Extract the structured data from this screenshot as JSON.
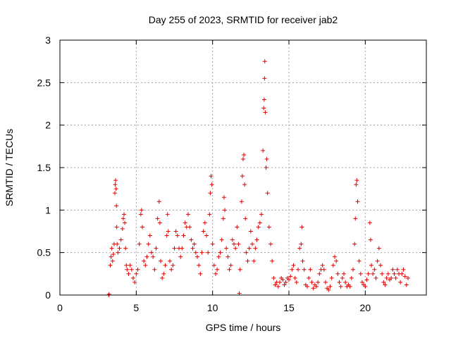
{
  "chart_data": {
    "type": "scatter",
    "title": "Day 255 of 2023, SRMTID for receiver jab2",
    "xlabel": "GPS time / hours",
    "ylabel": "SRMTID / TECUs",
    "xlim": [
      0,
      24
    ],
    "ylim": [
      0,
      3
    ],
    "xticks": [
      0,
      5,
      10,
      15,
      20
    ],
    "yticks": [
      0,
      0.5,
      1,
      1.5,
      2,
      2.5,
      3
    ],
    "xtick_labels": [
      "0",
      "5",
      "10",
      "15",
      "20"
    ],
    "ytick_labels": [
      "0",
      "0.5",
      "1",
      "1.5",
      "2",
      "2.5",
      "3"
    ],
    "grid": true,
    "marker": "plus",
    "color": "#e00000",
    "series": [
      {
        "name": "jab2",
        "points": [
          [
            3.2,
            0.0
          ],
          [
            3.22,
            0.01
          ],
          [
            3.3,
            0.35
          ],
          [
            3.35,
            0.45
          ],
          [
            3.4,
            0.55
          ],
          [
            3.45,
            0.4
          ],
          [
            3.5,
            0.48
          ],
          [
            3.55,
            0.6
          ],
          [
            3.6,
            1.2
          ],
          [
            3.62,
            1.3
          ],
          [
            3.65,
            1.35
          ],
          [
            3.68,
            1.25
          ],
          [
            3.7,
            1.05
          ],
          [
            3.72,
            0.8
          ],
          [
            3.75,
            0.6
          ],
          [
            3.8,
            0.5
          ],
          [
            3.9,
            0.55
          ],
          [
            4.0,
            0.65
          ],
          [
            4.1,
            0.78
          ],
          [
            4.15,
            0.9
          ],
          [
            4.2,
            0.95
          ],
          [
            4.25,
            0.85
          ],
          [
            4.3,
            0.55
          ],
          [
            4.35,
            0.35
          ],
          [
            4.4,
            0.3
          ],
          [
            4.5,
            0.25
          ],
          [
            4.6,
            0.35
          ],
          [
            4.7,
            0.3
          ],
          [
            4.8,
            0.2
          ],
          [
            4.9,
            0.15
          ],
          [
            5.0,
            0.25
          ],
          [
            5.1,
            0.3
          ],
          [
            5.2,
            0.6
          ],
          [
            5.3,
            0.95
          ],
          [
            5.35,
            1.0
          ],
          [
            5.4,
            0.8
          ],
          [
            5.5,
            0.4
          ],
          [
            5.6,
            0.35
          ],
          [
            5.7,
            0.45
          ],
          [
            5.8,
            0.6
          ],
          [
            5.9,
            0.7
          ],
          [
            6.0,
            0.5
          ],
          [
            6.1,
            0.45
          ],
          [
            6.2,
            0.3
          ],
          [
            6.3,
            0.55
          ],
          [
            6.4,
            0.9
          ],
          [
            6.5,
            1.1
          ],
          [
            6.55,
            0.85
          ],
          [
            6.6,
            0.4
          ],
          [
            6.7,
            0.2
          ],
          [
            6.8,
            0.25
          ],
          [
            6.9,
            0.35
          ],
          [
            7.0,
            0.7
          ],
          [
            7.05,
            0.95
          ],
          [
            7.1,
            0.75
          ],
          [
            7.2,
            0.4
          ],
          [
            7.3,
            0.3
          ],
          [
            7.4,
            0.35
          ],
          [
            7.5,
            0.55
          ],
          [
            7.6,
            0.75
          ],
          [
            7.7,
            0.7
          ],
          [
            7.8,
            0.55
          ],
          [
            7.9,
            0.45
          ],
          [
            8.0,
            0.55
          ],
          [
            8.1,
            0.7
          ],
          [
            8.2,
            0.85
          ],
          [
            8.3,
            0.8
          ],
          [
            8.4,
            0.95
          ],
          [
            8.5,
            0.8
          ],
          [
            8.6,
            0.65
          ],
          [
            8.7,
            0.55
          ],
          [
            8.8,
            0.6
          ],
          [
            8.9,
            0.5
          ],
          [
            9.0,
            0.45
          ],
          [
            9.1,
            0.35
          ],
          [
            9.2,
            0.25
          ],
          [
            9.3,
            0.5
          ],
          [
            9.4,
            0.75
          ],
          [
            9.5,
            0.85
          ],
          [
            9.6,
            0.7
          ],
          [
            9.7,
            0.5
          ],
          [
            9.8,
            0.95
          ],
          [
            9.85,
            1.2
          ],
          [
            9.9,
            1.4
          ],
          [
            9.95,
            1.3
          ],
          [
            10.0,
            0.6
          ],
          [
            10.1,
            0.35
          ],
          [
            10.2,
            0.25
          ],
          [
            10.3,
            0.3
          ],
          [
            10.4,
            0.45
          ],
          [
            10.5,
            0.5
          ],
          [
            10.6,
            0.65
          ],
          [
            10.7,
            0.9
          ],
          [
            10.75,
            1.15
          ],
          [
            10.8,
            1.0
          ],
          [
            10.9,
            0.55
          ],
          [
            11.0,
            0.45
          ],
          [
            11.1,
            0.3
          ],
          [
            11.2,
            0.35
          ],
          [
            11.3,
            0.65
          ],
          [
            11.4,
            0.6
          ],
          [
            11.5,
            0.55
          ],
          [
            11.6,
            0.8
          ],
          [
            11.7,
            0.6
          ],
          [
            11.75,
            0.02
          ],
          [
            11.8,
            0.3
          ],
          [
            11.9,
            1.1
          ],
          [
            11.95,
            1.4
          ],
          [
            12.0,
            1.6
          ],
          [
            12.05,
            1.65
          ],
          [
            12.1,
            1.3
          ],
          [
            12.15,
            0.9
          ],
          [
            12.2,
            0.5
          ],
          [
            12.3,
            0.4
          ],
          [
            12.4,
            0.55
          ],
          [
            12.5,
            0.75
          ],
          [
            12.6,
            0.6
          ],
          [
            12.7,
            0.4
          ],
          [
            12.8,
            0.55
          ],
          [
            12.9,
            0.65
          ],
          [
            13.0,
            0.8
          ],
          [
            13.1,
            0.85
          ],
          [
            13.2,
            0.95
          ],
          [
            13.3,
            1.7
          ],
          [
            13.35,
            2.2
          ],
          [
            13.38,
            2.3
          ],
          [
            13.4,
            2.55
          ],
          [
            13.42,
            2.75
          ],
          [
            13.45,
            2.15
          ],
          [
            13.5,
            1.5
          ],
          [
            13.55,
            1.6
          ],
          [
            13.6,
            1.2
          ],
          [
            13.7,
            0.8
          ],
          [
            13.8,
            0.6
          ],
          [
            13.9,
            0.4
          ],
          [
            14.0,
            0.2
          ],
          [
            14.1,
            0.12
          ],
          [
            14.2,
            0.15
          ],
          [
            14.3,
            0.1
          ],
          [
            14.4,
            0.15
          ],
          [
            14.5,
            0.2
          ],
          [
            14.6,
            0.18
          ],
          [
            14.7,
            0.12
          ],
          [
            14.8,
            0.15
          ],
          [
            14.9,
            0.2
          ],
          [
            15.0,
            0.18
          ],
          [
            15.1,
            0.22
          ],
          [
            15.2,
            0.3
          ],
          [
            15.3,
            0.35
          ],
          [
            15.4,
            0.2
          ],
          [
            15.5,
            0.15
          ],
          [
            15.6,
            0.3
          ],
          [
            15.7,
            0.55
          ],
          [
            15.8,
            0.6
          ],
          [
            15.85,
            0.8
          ],
          [
            15.9,
            0.4
          ],
          [
            16.0,
            0.3
          ],
          [
            16.1,
            0.12
          ],
          [
            16.2,
            0.1
          ],
          [
            16.3,
            0.2
          ],
          [
            16.4,
            0.3
          ],
          [
            16.5,
            0.15
          ],
          [
            16.6,
            0.08
          ],
          [
            16.7,
            0.12
          ],
          [
            16.8,
            0.1
          ],
          [
            16.9,
            0.15
          ],
          [
            17.0,
            0.25
          ],
          [
            17.1,
            0.3
          ],
          [
            17.2,
            0.35
          ],
          [
            17.3,
            0.3
          ],
          [
            17.4,
            0.15
          ],
          [
            17.5,
            0.08
          ],
          [
            17.6,
            0.06
          ],
          [
            17.7,
            0.1
          ],
          [
            17.8,
            0.2
          ],
          [
            17.9,
            0.35
          ],
          [
            18.0,
            0.45
          ],
          [
            18.1,
            0.4
          ],
          [
            18.2,
            0.25
          ],
          [
            18.3,
            0.15
          ],
          [
            18.4,
            0.1
          ],
          [
            18.5,
            0.2
          ],
          [
            18.6,
            0.25
          ],
          [
            18.7,
            0.15
          ],
          [
            18.8,
            0.1
          ],
          [
            18.9,
            0.12
          ],
          [
            19.0,
            0.1
          ],
          [
            19.1,
            0.2
          ],
          [
            19.2,
            0.3
          ],
          [
            19.3,
            0.6
          ],
          [
            19.35,
            0.9
          ],
          [
            19.4,
            1.3
          ],
          [
            19.45,
            1.35
          ],
          [
            19.5,
            1.1
          ],
          [
            19.6,
            0.4
          ],
          [
            19.7,
            0.25
          ],
          [
            19.8,
            0.15
          ],
          [
            19.9,
            0.12
          ],
          [
            20.0,
            0.1
          ],
          [
            20.1,
            0.18
          ],
          [
            20.2,
            0.25
          ],
          [
            20.3,
            0.85
          ],
          [
            20.35,
            0.65
          ],
          [
            20.4,
            0.35
          ],
          [
            20.5,
            0.25
          ],
          [
            20.6,
            0.3
          ],
          [
            20.7,
            0.2
          ],
          [
            20.8,
            0.4
          ],
          [
            20.9,
            0.55
          ],
          [
            21.0,
            0.35
          ],
          [
            21.1,
            0.25
          ],
          [
            21.2,
            0.15
          ],
          [
            21.3,
            0.12
          ],
          [
            21.4,
            0.2
          ],
          [
            21.5,
            0.25
          ],
          [
            21.6,
            0.18
          ],
          [
            21.7,
            0.2
          ],
          [
            21.8,
            0.3
          ],
          [
            21.9,
            0.25
          ],
          [
            22.0,
            0.2
          ],
          [
            22.1,
            0.3
          ],
          [
            22.2,
            0.25
          ],
          [
            22.3,
            0.15
          ],
          [
            22.4,
            0.25
          ],
          [
            22.5,
            0.3
          ],
          [
            22.6,
            0.22
          ],
          [
            22.7,
            0.12
          ],
          [
            22.8,
            0.2
          ]
        ]
      }
    ]
  }
}
